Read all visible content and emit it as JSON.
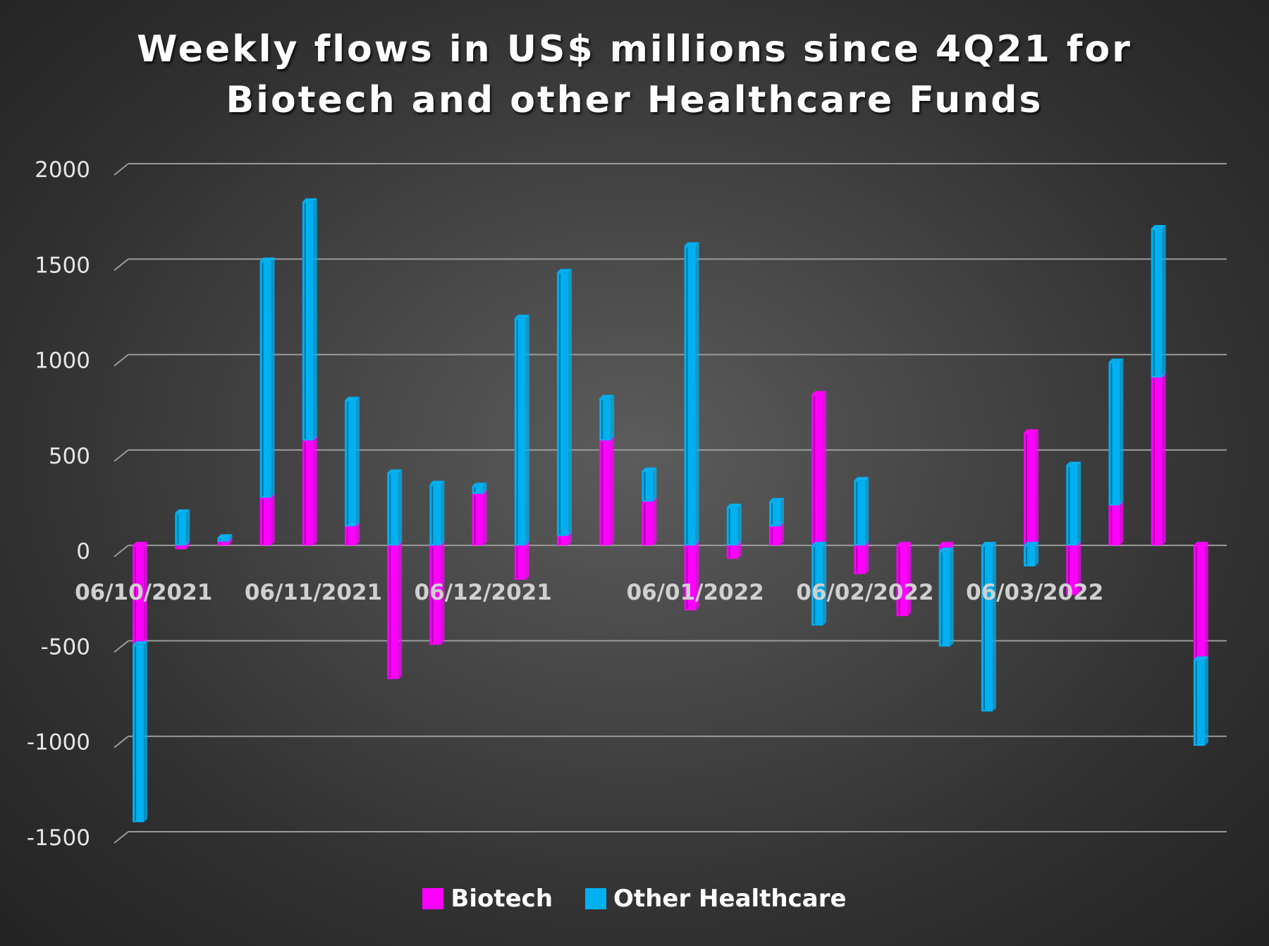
{
  "title": {
    "line1": "Weekly flows in US$ millions since 4Q21 for",
    "line2": "Biotech and other Healthcare Funds"
  },
  "colors": {
    "biotech": "#ff00ff",
    "other_healthcare": "#00b0f0",
    "grid": "#9a9a9a"
  },
  "chart_data": {
    "type": "bar",
    "stacked": true,
    "title": "Weekly flows in US$ millions since 4Q21 for Biotech and other Healthcare Funds",
    "ylim": [
      -1500,
      2000
    ],
    "yticks": [
      2000,
      1500,
      1000,
      500,
      0,
      -500,
      -1000,
      -1500
    ],
    "grid": true,
    "legend_position": "bottom",
    "x_tick_labels": [
      "06/10/2021",
      "06/11/2021",
      "06/12/2021",
      "06/01/2022",
      "06/02/2022",
      "06/03/2022"
    ],
    "x_tick_label_indices": [
      0,
      4,
      8,
      13,
      17,
      21
    ],
    "series": [
      {
        "name": "Biotech",
        "values": [
          -520,
          -20,
          20,
          250,
          550,
          100,
          -700,
          -520,
          270,
          -180,
          50,
          550,
          230,
          -340,
          -70,
          100,
          790,
          -150,
          -370,
          -30,
          0,
          590,
          -260,
          210,
          880,
          -600
        ]
      },
      {
        "name": "Other Healthcare",
        "values": [
          -930,
          170,
          20,
          1240,
          1250,
          660,
          380,
          320,
          40,
          1190,
          1380,
          220,
          160,
          1570,
          200,
          130,
          -420,
          340,
          0,
          -500,
          -870,
          -110,
          420,
          750,
          780,
          -450
        ]
      }
    ]
  }
}
